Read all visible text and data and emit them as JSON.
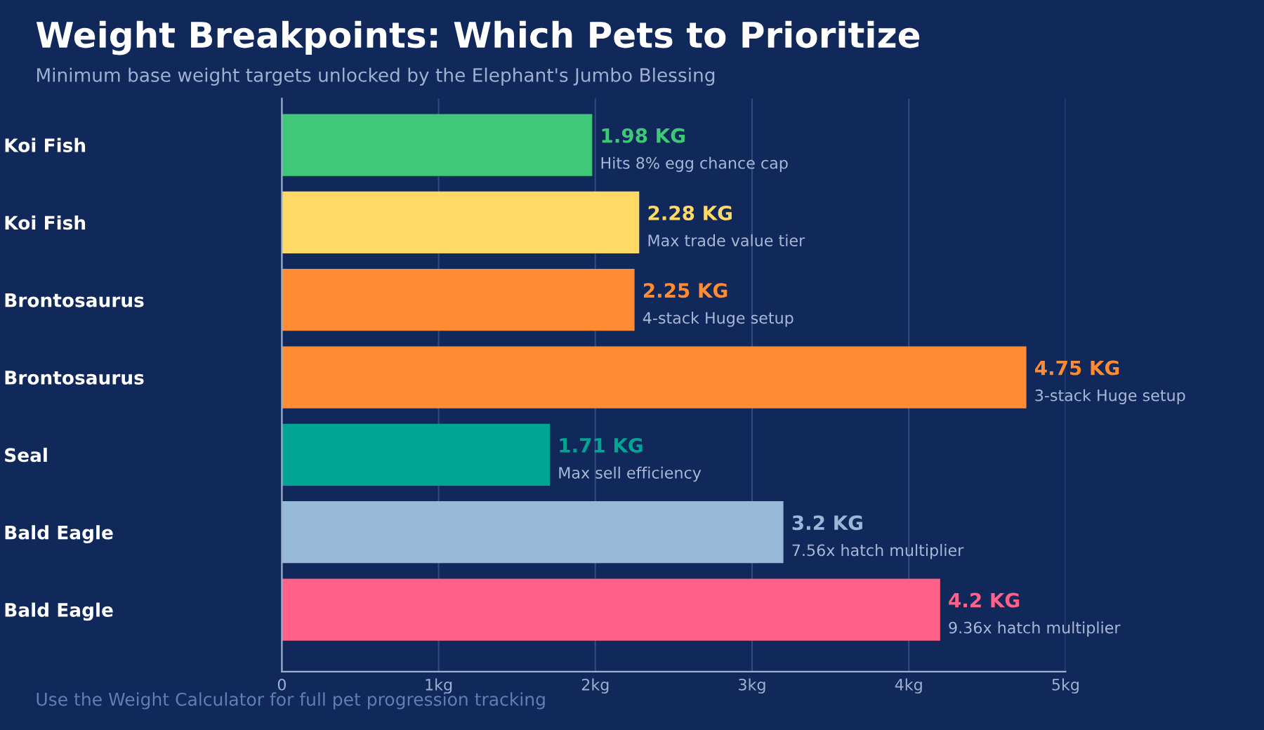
{
  "chart_data": {
    "type": "bar",
    "orientation": "horizontal",
    "title": "Weight Breakpoints: Which Pets to Prioritize",
    "subtitle": "Minimum base weight targets unlocked by the Elephant's Jumbo Blessing",
    "categories": [
      "Koi Fish",
      "Koi Fish",
      "Brontosaurus",
      "Brontosaurus",
      "Seal",
      "Bald Eagle",
      "Bald Eagle"
    ],
    "values": [
      1.98,
      2.28,
      2.25,
      4.75,
      1.71,
      3.2,
      4.2
    ],
    "colors": [
      "#3ec877",
      "#ffd966",
      "#ff8c33",
      "#ff8c33",
      "#00a693",
      "#97b8d6",
      "#ff6189"
    ],
    "value_labels": [
      "1.98 KG",
      "2.28 KG",
      "2.25 KG",
      "4.75 KG",
      "1.71 KG",
      "3.2 KG",
      "4.2 KG"
    ],
    "annotations": [
      "Hits 8% egg chance cap",
      "Max trade value tier",
      "4-stack Huge setup",
      "3-stack Huge setup",
      "Max sell efficiency",
      "7.56x hatch multiplier",
      "9.36x hatch multiplier",
      "Use the Weight Calculator for full pet progression tracking"
    ],
    "xlim": [
      0,
      5
    ],
    "xticks": [
      0,
      {
        "value": 1,
        "label": "1kg"
      },
      {
        "value": 2,
        "label": "2kg"
      },
      {
        "value": 3,
        "label": "3kg"
      },
      {
        "value": 4,
        "label": "4kg"
      },
      {
        "value": 5,
        "label": "5kg"
      }
    ],
    "grid": "x"
  }
}
